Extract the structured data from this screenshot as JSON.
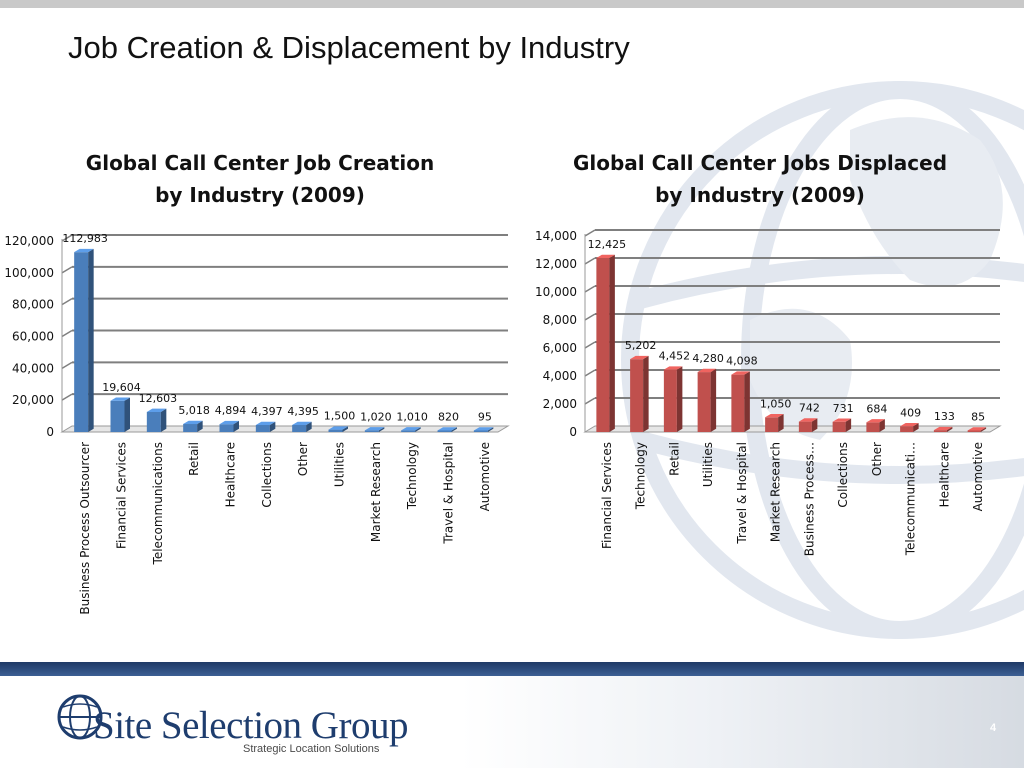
{
  "slide": {
    "title": "Job Creation & Displacement by Industry",
    "page_number": "4"
  },
  "logo": {
    "name": "Site Selection Group",
    "tagline": "Strategic Location Solutions"
  },
  "colors": {
    "creation_bars": "#4a7ebb",
    "displaced_bars": "#c0504d",
    "footer_band": "#1f3a66"
  },
  "chart_data": [
    {
      "type": "bar",
      "title": "Global Call Center Job Creation\nby Industry (2009)",
      "categories": [
        "Business Process Outsourcer",
        "Financial Services",
        "Telecommunications",
        "Retail",
        "Healthcare",
        "Collections",
        "Other",
        "Utilities",
        "Market Research",
        "Technology",
        "Travel & Hospital",
        "Automotive"
      ],
      "values": [
        112983,
        19604,
        12603,
        5018,
        4894,
        4397,
        4395,
        1500,
        1020,
        1010,
        820,
        95
      ],
      "value_labels": [
        "112,983",
        "19,604",
        "12,603",
        "5,018",
        "4,894",
        "4,397",
        "4,395",
        "1,500",
        "1,020",
        "1,010",
        "820",
        "95"
      ],
      "ylim": [
        0,
        120000
      ],
      "yticks": [
        0,
        20000,
        40000,
        60000,
        80000,
        100000,
        120000
      ],
      "ytick_labels": [
        "0",
        "20,000",
        "40,000",
        "60,000",
        "80,000",
        "100,000",
        "120,000"
      ],
      "grid": true,
      "color": "#4a7ebb"
    },
    {
      "type": "bar",
      "title": "Global Call Center Jobs Displaced\nby Industry (2009)",
      "categories": [
        "Financial Services",
        "Technology",
        "Retail",
        "Utilities",
        "Travel & Hospital",
        "Market Research",
        "Business Process…",
        "Collections",
        "Other",
        "Telecommunicati…",
        "Healthcare",
        "Automotive"
      ],
      "values": [
        12425,
        5202,
        4452,
        4280,
        4098,
        1050,
        742,
        731,
        684,
        409,
        133,
        85
      ],
      "value_labels": [
        "12,425",
        "5,202",
        "4,452",
        "4,280",
        "4,098",
        "1,050",
        "742",
        "731",
        "684",
        "409",
        "133",
        "85"
      ],
      "ylim": [
        0,
        14000
      ],
      "yticks": [
        0,
        2000,
        4000,
        6000,
        8000,
        10000,
        12000,
        14000
      ],
      "ytick_labels": [
        "0",
        "2,000",
        "4,000",
        "6,000",
        "8,000",
        "10,000",
        "12,000",
        "14,000"
      ],
      "grid": true,
      "color": "#c0504d"
    }
  ]
}
